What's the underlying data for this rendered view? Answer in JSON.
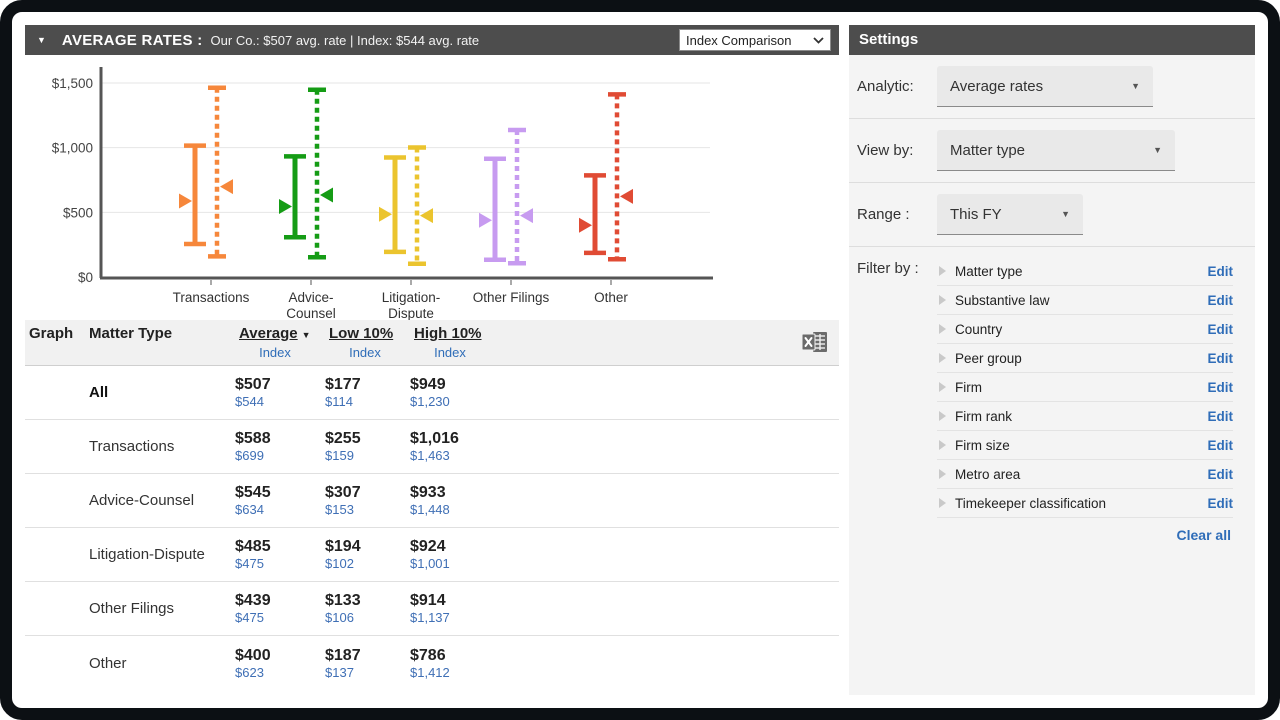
{
  "icons": {
    "collapse": "▼",
    "sort_desc": "▼",
    "dropdown_caret": "▼"
  },
  "rates_header": {
    "title": "AVERAGE RATES :",
    "subtitle": "Our Co.: $507 avg. rate   |   Index: $544 avg. rate",
    "comparison_dropdown": "Index Comparison"
  },
  "chart_data": {
    "type": "range-bar",
    "categories": [
      "Transactions",
      "Advice-Counsel",
      "Litigation-Dispute",
      "Other Filings",
      "Other"
    ],
    "category_label_lines": [
      [
        "Transactions"
      ],
      [
        "Advice-",
        "Counsel"
      ],
      [
        "Litigation-",
        "Dispute"
      ],
      [
        "Other Filings"
      ],
      [
        "Other"
      ]
    ],
    "series": [
      {
        "name": "Our Co.",
        "style": "solid",
        "values": [
          {
            "low": 255,
            "avg": 588,
            "high": 1016
          },
          {
            "low": 307,
            "avg": 545,
            "high": 933
          },
          {
            "low": 194,
            "avg": 485,
            "high": 924
          },
          {
            "low": 133,
            "avg": 439,
            "high": 914
          },
          {
            "low": 187,
            "avg": 400,
            "high": 786
          }
        ]
      },
      {
        "name": "Index",
        "style": "dashed",
        "values": [
          {
            "low": 159,
            "avg": 699,
            "high": 1463
          },
          {
            "low": 153,
            "avg": 634,
            "high": 1448
          },
          {
            "low": 102,
            "avg": 475,
            "high": 1001
          },
          {
            "low": 106,
            "avg": 475,
            "high": 1137
          },
          {
            "low": 137,
            "avg": 623,
            "high": 1412
          }
        ]
      }
    ],
    "colors": [
      "#F6873B",
      "#159C15",
      "#EBC42E",
      "#C79BF0",
      "#E04B34"
    ],
    "ylim": [
      0,
      1500
    ],
    "yticks": [
      {
        "v": 0,
        "label": "$0"
      },
      {
        "v": 500,
        "label": "$500"
      },
      {
        "v": 1000,
        "label": "$1,000"
      },
      {
        "v": 1500,
        "label": "$1,500"
      }
    ],
    "grid": true,
    "legend": "none"
  },
  "table": {
    "columns": {
      "graph": "Graph",
      "matter_type": "Matter Type",
      "average": "Average",
      "low": "Low 10%",
      "high": "High 10%",
      "index": "Index"
    },
    "rows": [
      {
        "name": "All",
        "bold": true,
        "color": null,
        "avg": "$507",
        "avg_index": "$544",
        "low": "$177",
        "low_index": "$114",
        "high": "$949",
        "high_index": "$1,230"
      },
      {
        "name": "Transactions",
        "bold": false,
        "color": "#F6873B",
        "avg": "$588",
        "avg_index": "$699",
        "low": "$255",
        "low_index": "$159",
        "high": "$1,016",
        "high_index": "$1,463"
      },
      {
        "name": "Advice-Counsel",
        "bold": false,
        "color": "#159C15",
        "avg": "$545",
        "avg_index": "$634",
        "low": "$307",
        "low_index": "$153",
        "high": "$933",
        "high_index": "$1,448"
      },
      {
        "name": "Litigation-Dispute",
        "bold": false,
        "color": "#EBC42E",
        "avg": "$485",
        "avg_index": "$475",
        "low": "$194",
        "low_index": "$102",
        "high": "$924",
        "high_index": "$1,001"
      },
      {
        "name": "Other Filings",
        "bold": false,
        "color": "#C79BF0",
        "avg": "$439",
        "avg_index": "$475",
        "low": "$133",
        "low_index": "$106",
        "high": "$914",
        "high_index": "$1,137"
      },
      {
        "name": "Other",
        "bold": false,
        "color": "#E04B34",
        "avg": "$400",
        "avg_index": "$623",
        "low": "$187",
        "low_index": "$137",
        "high": "$786",
        "high_index": "$1,412"
      }
    ]
  },
  "settings": {
    "title": "Settings",
    "fields": [
      {
        "label": "Analytic:",
        "value": "Average rates"
      },
      {
        "label": "View by:",
        "value": "Matter type"
      },
      {
        "label": "Range :",
        "value": "This FY"
      }
    ],
    "filter_label": "Filter by :",
    "edit_label": "Edit",
    "filters": [
      {
        "name": "Matter type"
      },
      {
        "name": "Substantive law"
      },
      {
        "name": "Country"
      },
      {
        "name": "Peer group"
      },
      {
        "name": "Firm"
      },
      {
        "name": "Firm rank"
      },
      {
        "name": "Firm size"
      },
      {
        "name": "Metro area"
      },
      {
        "name": "Timekeeper classification"
      }
    ],
    "clear_all": "Clear all"
  }
}
